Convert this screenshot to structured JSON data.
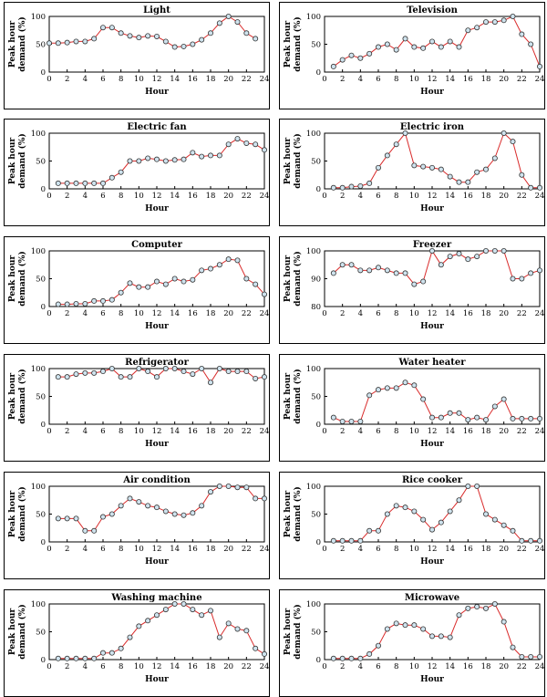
{
  "colors": {
    "line": "#d92b2b",
    "marker_fill": "#cfe3ee",
    "marker_stroke": "#333333",
    "frame": "#000000"
  },
  "chart_data": [
    {
      "type": "line",
      "title": "Light",
      "xlabel": "Hour",
      "ylabel_lines": [
        "Peak hour",
        "demand (%)"
      ],
      "xlim": [
        0,
        24
      ],
      "xticks": [
        0,
        2,
        4,
        6,
        8,
        10,
        12,
        14,
        16,
        18,
        20,
        22,
        24
      ],
      "ylim": [
        0,
        100
      ],
      "yticks": [
        0,
        50,
        100
      ],
      "grid": false,
      "series": [
        {
          "x": [
            0,
            1,
            2,
            3,
            4,
            5,
            6,
            7,
            8,
            9,
            10,
            11,
            12,
            13,
            14,
            15,
            16,
            17,
            18,
            19,
            20,
            21,
            22,
            23
          ],
          "values": [
            52,
            52,
            53,
            55,
            55,
            60,
            80,
            80,
            70,
            65,
            62,
            65,
            64,
            55,
            45,
            46,
            50,
            58,
            70,
            88,
            100,
            90,
            70,
            60
          ]
        }
      ]
    },
    {
      "type": "line",
      "title": "Television",
      "xlabel": "Hour",
      "ylabel_lines": [
        "Peak hour",
        "demand (%)"
      ],
      "xlim": [
        0,
        24
      ],
      "xticks": [
        0,
        2,
        4,
        6,
        8,
        10,
        12,
        14,
        16,
        18,
        20,
        22,
        24
      ],
      "ylim": [
        0,
        100
      ],
      "yticks": [
        0,
        50,
        100
      ],
      "grid": false,
      "series": [
        {
          "x": [
            1,
            2,
            3,
            4,
            5,
            6,
            7,
            8,
            9,
            10,
            11,
            12,
            13,
            14,
            15,
            16,
            17,
            18,
            19,
            20,
            21,
            22,
            23,
            24
          ],
          "values": [
            10,
            22,
            30,
            25,
            33,
            45,
            50,
            40,
            60,
            45,
            43,
            55,
            45,
            55,
            45,
            75,
            80,
            90,
            90,
            93,
            100,
            68,
            50,
            10
          ]
        }
      ]
    },
    {
      "type": "line",
      "title": "Electric fan",
      "xlabel": "Hour",
      "ylabel_lines": [
        "Peak hour",
        "demand (%)"
      ],
      "xlim": [
        0,
        24
      ],
      "xticks": [
        0,
        2,
        4,
        6,
        8,
        10,
        12,
        14,
        16,
        18,
        20,
        22,
        24
      ],
      "ylim": [
        0,
        100
      ],
      "yticks": [
        0,
        50,
        100
      ],
      "grid": false,
      "series": [
        {
          "x": [
            1,
            2,
            3,
            4,
            5,
            6,
            7,
            8,
            9,
            10,
            11,
            12,
            13,
            14,
            15,
            16,
            17,
            18,
            19,
            20,
            21,
            22,
            23,
            24
          ],
          "values": [
            10,
            10,
            10,
            10,
            10,
            10,
            20,
            30,
            50,
            50,
            55,
            53,
            50,
            52,
            53,
            65,
            58,
            60,
            60,
            80,
            90,
            82,
            80,
            70
          ]
        }
      ]
    },
    {
      "type": "line",
      "title": "Electric iron",
      "xlabel": "Hour",
      "ylabel_lines": [
        "Peak hour",
        "demand (%)"
      ],
      "xlim": [
        0,
        24
      ],
      "xticks": [
        0,
        2,
        4,
        6,
        8,
        10,
        12,
        14,
        16,
        18,
        20,
        22,
        24
      ],
      "ylim": [
        0,
        100
      ],
      "yticks": [
        0,
        50,
        100
      ],
      "grid": false,
      "series": [
        {
          "x": [
            1,
            2,
            3,
            4,
            5,
            6,
            7,
            8,
            9,
            10,
            11,
            12,
            13,
            14,
            15,
            16,
            17,
            18,
            19,
            20,
            21,
            22,
            23,
            24
          ],
          "values": [
            2,
            2,
            4,
            5,
            10,
            38,
            60,
            80,
            100,
            42,
            40,
            38,
            35,
            22,
            12,
            12,
            30,
            35,
            55,
            100,
            85,
            25,
            2,
            2
          ]
        }
      ]
    },
    {
      "type": "line",
      "title": "Computer",
      "xlabel": "Hour",
      "ylabel_lines": [
        "Peak hour",
        "demand (%)"
      ],
      "xlim": [
        0,
        24
      ],
      "xticks": [
        0,
        2,
        4,
        6,
        8,
        10,
        12,
        14,
        16,
        18,
        20,
        22,
        24
      ],
      "ylim": [
        0,
        100
      ],
      "yticks": [
        0,
        50,
        100
      ],
      "grid": false,
      "series": [
        {
          "x": [
            1,
            2,
            3,
            4,
            5,
            6,
            7,
            8,
            9,
            10,
            11,
            12,
            13,
            14,
            15,
            16,
            17,
            18,
            19,
            20,
            21,
            22,
            23,
            24
          ],
          "values": [
            4,
            4,
            5,
            5,
            10,
            10,
            12,
            25,
            42,
            35,
            35,
            45,
            40,
            50,
            45,
            48,
            65,
            68,
            75,
            85,
            83,
            50,
            40,
            22
          ]
        }
      ]
    },
    {
      "type": "line",
      "title": "Freezer",
      "xlabel": "Hour",
      "ylabel_lines": [
        "Peak hour",
        "demand (%)"
      ],
      "xlim": [
        0,
        24
      ],
      "xticks": [
        0,
        2,
        4,
        6,
        8,
        10,
        12,
        14,
        16,
        18,
        20,
        22,
        24
      ],
      "ylim": [
        80,
        100
      ],
      "yticks": [
        80,
        90,
        100
      ],
      "grid": false,
      "series": [
        {
          "x": [
            1,
            2,
            3,
            4,
            5,
            6,
            7,
            8,
            9,
            10,
            11,
            12,
            13,
            14,
            15,
            16,
            17,
            18,
            19,
            20,
            21,
            22,
            23,
            24
          ],
          "values": [
            92,
            95,
            95,
            93,
            93,
            94,
            93,
            92,
            92,
            88,
            89,
            100,
            95,
            98,
            99,
            97,
            98,
            100,
            100,
            100,
            90,
            90,
            92,
            93
          ]
        }
      ]
    },
    {
      "type": "line",
      "title": "Refrigerator",
      "xlabel": "Hour",
      "ylabel_lines": [
        "Peak hour",
        "demand (%)"
      ],
      "xlim": [
        0,
        24
      ],
      "xticks": [
        0,
        2,
        4,
        6,
        8,
        10,
        12,
        14,
        16,
        18,
        20,
        22,
        24
      ],
      "ylim": [
        0,
        100
      ],
      "yticks": [
        0,
        50,
        100
      ],
      "grid": false,
      "series": [
        {
          "x": [
            1,
            2,
            3,
            4,
            5,
            6,
            7,
            8,
            9,
            10,
            11,
            12,
            13,
            14,
            15,
            16,
            17,
            18,
            19,
            20,
            21,
            22,
            23,
            24
          ],
          "values": [
            85,
            85,
            90,
            92,
            92,
            95,
            100,
            85,
            85,
            100,
            95,
            85,
            100,
            100,
            95,
            90,
            100,
            75,
            100,
            95,
            95,
            95,
            82,
            85
          ]
        }
      ]
    },
    {
      "type": "line",
      "title": "Water heater",
      "xlabel": "Hour",
      "ylabel_lines": [
        "Peak hour",
        "demand (%)"
      ],
      "xlim": [
        0,
        24
      ],
      "xticks": [
        0,
        2,
        4,
        6,
        8,
        10,
        12,
        14,
        16,
        18,
        20,
        22,
        24
      ],
      "ylim": [
        0,
        100
      ],
      "yticks": [
        0,
        50,
        100
      ],
      "grid": false,
      "series": [
        {
          "x": [
            1,
            2,
            3,
            4,
            5,
            6,
            7,
            8,
            9,
            10,
            11,
            12,
            13,
            14,
            15,
            16,
            17,
            18,
            19,
            20,
            21,
            22,
            23,
            24
          ],
          "values": [
            12,
            5,
            5,
            5,
            52,
            62,
            65,
            65,
            75,
            70,
            45,
            12,
            12,
            20,
            20,
            8,
            12,
            8,
            32,
            45,
            10,
            10,
            10,
            10
          ]
        }
      ]
    },
    {
      "type": "line",
      "title": "Air condition",
      "xlabel": "Hour",
      "ylabel_lines": [
        "Peak hour",
        "demand (%)"
      ],
      "xlim": [
        0,
        24
      ],
      "xticks": [
        0,
        2,
        4,
        6,
        8,
        10,
        12,
        14,
        16,
        18,
        20,
        22,
        24
      ],
      "ylim": [
        0,
        100
      ],
      "yticks": [
        0,
        50,
        100
      ],
      "grid": false,
      "series": [
        {
          "x": [
            1,
            2,
            3,
            4,
            5,
            6,
            7,
            8,
            9,
            10,
            11,
            12,
            13,
            14,
            15,
            16,
            17,
            18,
            19,
            20,
            21,
            22,
            23,
            24
          ],
          "values": [
            42,
            42,
            42,
            20,
            20,
            45,
            50,
            65,
            78,
            72,
            65,
            62,
            55,
            50,
            48,
            52,
            65,
            90,
            100,
            100,
            98,
            98,
            78,
            78
          ]
        }
      ]
    },
    {
      "type": "line",
      "title": "Rice cooker",
      "xlabel": "Hour",
      "ylabel_lines": [
        "Peak hour",
        "demand (%)"
      ],
      "xlim": [
        0,
        24
      ],
      "xticks": [
        0,
        2,
        4,
        6,
        8,
        10,
        12,
        14,
        16,
        18,
        20,
        22,
        24
      ],
      "ylim": [
        0,
        100
      ],
      "yticks": [
        0,
        50,
        100
      ],
      "grid": false,
      "series": [
        {
          "x": [
            1,
            2,
            3,
            4,
            5,
            6,
            7,
            8,
            9,
            10,
            11,
            12,
            13,
            14,
            15,
            16,
            17,
            18,
            19,
            20,
            21,
            22,
            23,
            24
          ],
          "values": [
            2,
            2,
            2,
            2,
            20,
            20,
            50,
            65,
            62,
            55,
            40,
            22,
            35,
            55,
            75,
            100,
            100,
            50,
            40,
            30,
            20,
            2,
            2,
            2
          ]
        }
      ]
    },
    {
      "type": "line",
      "title": "Washing machine",
      "xlabel": "Hour",
      "ylabel_lines": [
        "Peak hour",
        "demand (%)"
      ],
      "xlim": [
        0,
        24
      ],
      "xticks": [
        0,
        2,
        4,
        6,
        8,
        10,
        12,
        14,
        16,
        18,
        20,
        22,
        24
      ],
      "ylim": [
        0,
        100
      ],
      "yticks": [
        0,
        50,
        100
      ],
      "grid": false,
      "series": [
        {
          "x": [
            1,
            2,
            3,
            4,
            5,
            6,
            7,
            8,
            9,
            10,
            11,
            12,
            13,
            14,
            15,
            16,
            17,
            18,
            19,
            20,
            21,
            22,
            23,
            24
          ],
          "values": [
            2,
            2,
            2,
            2,
            2,
            12,
            12,
            20,
            40,
            60,
            70,
            80,
            90,
            100,
            100,
            90,
            80,
            88,
            40,
            65,
            55,
            52,
            20,
            10
          ]
        }
      ]
    },
    {
      "type": "line",
      "title": "Microwave",
      "xlabel": "Hour",
      "ylabel_lines": [
        "Peak hour",
        "demand (%)"
      ],
      "xlim": [
        0,
        24
      ],
      "xticks": [
        0,
        2,
        4,
        6,
        8,
        10,
        12,
        14,
        16,
        18,
        20,
        22,
        24
      ],
      "ylim": [
        0,
        100
      ],
      "yticks": [
        0,
        50,
        100
      ],
      "grid": false,
      "series": [
        {
          "x": [
            1,
            2,
            3,
            4,
            5,
            6,
            7,
            8,
            9,
            10,
            11,
            12,
            13,
            14,
            15,
            16,
            17,
            18,
            19,
            20,
            21,
            22,
            23,
            24
          ],
          "values": [
            2,
            2,
            2,
            2,
            10,
            25,
            55,
            65,
            62,
            62,
            55,
            42,
            42,
            40,
            80,
            92,
            95,
            92,
            100,
            68,
            22,
            5,
            5,
            5
          ]
        }
      ]
    }
  ]
}
